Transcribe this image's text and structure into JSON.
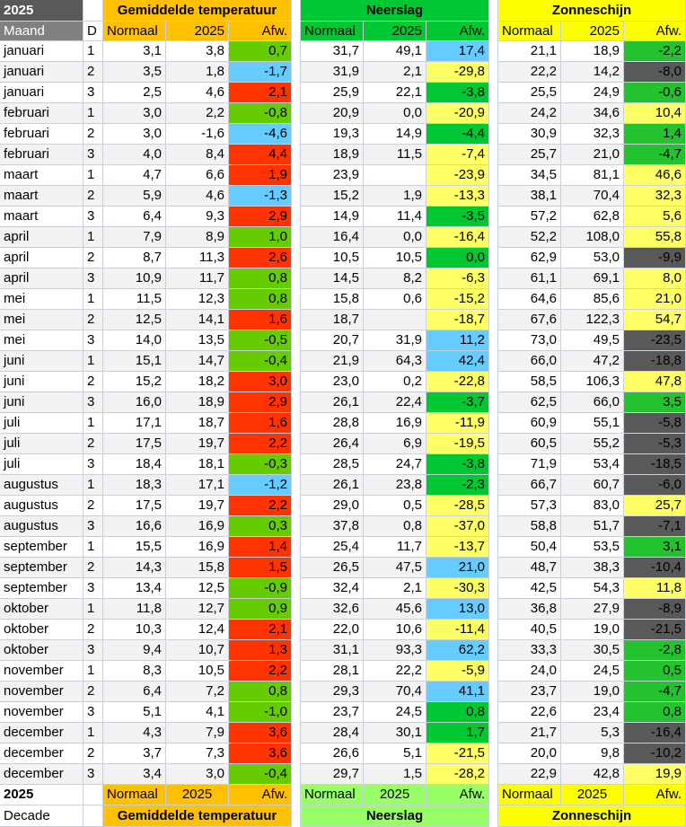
{
  "header": {
    "year": "2025",
    "col_month": "Maand",
    "col_d": "D",
    "groups": [
      "Gemiddelde temperatuur",
      "Neerslag",
      "Zonneschijn"
    ],
    "subheaders": [
      [
        "Normaal",
        "2025",
        "Afw."
      ],
      [
        "Normaal",
        "2025",
        "Afw."
      ],
      [
        "Normaal",
        "2025",
        "Afw."
      ]
    ]
  },
  "rows": [
    [
      "januari",
      1,
      "3,1",
      "3,8",
      "0,7",
      "31,7",
      "49,1",
      "17,4",
      "21,1",
      "18,9",
      "-2,2"
    ],
    [
      "januari",
      2,
      "3,5",
      "1,8",
      "-1,7",
      "31,9",
      "2,1",
      "-29,8",
      "22,2",
      "14,2",
      "-8,0"
    ],
    [
      "januari",
      3,
      "2,5",
      "4,6",
      "2,1",
      "25,9",
      "22,1",
      "-3,8",
      "25,5",
      "24,9",
      "-0,6"
    ],
    [
      "februari",
      1,
      "3,0",
      "2,2",
      "-0,8",
      "20,9",
      "0,0",
      "-20,9",
      "24,2",
      "34,6",
      "10,4"
    ],
    [
      "februari",
      2,
      "3,0",
      "-1,6",
      "-4,6",
      "19,3",
      "14,9",
      "-4,4",
      "30,9",
      "32,3",
      "1,4"
    ],
    [
      "februari",
      3,
      "4,0",
      "8,4",
      "4,4",
      "18,9",
      "11,5",
      "-7,4",
      "25,7",
      "21,0",
      "-4,7"
    ],
    [
      "maart",
      1,
      "4,7",
      "6,6",
      "1,9",
      "23,9",
      null,
      "-23,9",
      "34,5",
      "81,1",
      "46,6"
    ],
    [
      "maart",
      2,
      "5,9",
      "4,6",
      "-1,3",
      "15,2",
      "1,9",
      "-13,3",
      "38,1",
      "70,4",
      "32,3"
    ],
    [
      "maart",
      3,
      "6,4",
      "9,3",
      "2,9",
      "14,9",
      "11,4",
      "-3,5",
      "57,2",
      "62,8",
      "5,6"
    ],
    [
      "april",
      1,
      "7,9",
      "8,9",
      "1,0",
      "16,4",
      "0,0",
      "-16,4",
      "52,2",
      "108,0",
      "55,8"
    ],
    [
      "april",
      2,
      "8,7",
      "11,3",
      "2,6",
      "10,5",
      "10,5",
      "0,0",
      "62,9",
      "53,0",
      "-9,9"
    ],
    [
      "april",
      3,
      "10,9",
      "11,7",
      "0,8",
      "14,5",
      "8,2",
      "-6,3",
      "61,1",
      "69,1",
      "8,0"
    ],
    [
      "mei",
      1,
      "11,5",
      "12,3",
      "0,8",
      "15,8",
      "0,6",
      "-15,2",
      "64,6",
      "85,6",
      "21,0"
    ],
    [
      "mei",
      2,
      "12,5",
      "14,1",
      "1,6",
      "18,7",
      null,
      "-18,7",
      "67,6",
      "122,3",
      "54,7"
    ],
    [
      "mei",
      3,
      "14,0",
      "13,5",
      "-0,5",
      "20,7",
      "31,9",
      "11,2",
      "73,0",
      "49,5",
      "-23,5"
    ],
    [
      "juni",
      1,
      "15,1",
      "14,7",
      "-0,4",
      "21,9",
      "64,3",
      "42,4",
      "66,0",
      "47,2",
      "-18,8"
    ],
    [
      "juni",
      2,
      "15,2",
      "18,2",
      "3,0",
      "23,0",
      "0,2",
      "-22,8",
      "58,5",
      "106,3",
      "47,8"
    ],
    [
      "juni",
      3,
      "16,0",
      "18,9",
      "2,9",
      "26,1",
      "22,4",
      "-3,7",
      "62,5",
      "66,0",
      "3,5"
    ],
    [
      "juli",
      1,
      "17,1",
      "18,7",
      "1,6",
      "28,8",
      "16,9",
      "-11,9",
      "60,9",
      "55,1",
      "-5,8"
    ],
    [
      "juli",
      2,
      "17,5",
      "19,7",
      "2,2",
      "26,4",
      "6,9",
      "-19,5",
      "60,5",
      "55,2",
      "-5,3"
    ],
    [
      "juli",
      3,
      "18,4",
      "18,1",
      "-0,3",
      "28,5",
      "24,7",
      "-3,8",
      "71,9",
      "53,4",
      "-18,5"
    ],
    [
      "augustus",
      1,
      "18,3",
      "17,1",
      "-1,2",
      "26,1",
      "23,8",
      "-2,3",
      "66,7",
      "60,7",
      "-6,0"
    ],
    [
      "augustus",
      2,
      "17,5",
      "19,7",
      "2,2",
      "29,0",
      "0,5",
      "-28,5",
      "57,3",
      "83,0",
      "25,7"
    ],
    [
      "augustus",
      3,
      "16,6",
      "16,9",
      "0,3",
      "37,8",
      "0,8",
      "-37,0",
      "58,8",
      "51,7",
      "-7,1"
    ],
    [
      "september",
      1,
      "15,5",
      "16,9",
      "1,4",
      "25,4",
      "11,7",
      "-13,7",
      "50,4",
      "53,5",
      "3,1"
    ],
    [
      "september",
      2,
      "14,3",
      "15,8",
      "1,5",
      "26,5",
      "47,5",
      "21,0",
      "48,7",
      "38,3",
      "-10,4"
    ],
    [
      "september",
      3,
      "13,4",
      "12,5",
      "-0,9",
      "32,4",
      "2,1",
      "-30,3",
      "42,5",
      "54,3",
      "11,8"
    ],
    [
      "oktober",
      1,
      "11,8",
      "12,7",
      "0,9",
      "32,6",
      "45,6",
      "13,0",
      "36,8",
      "27,9",
      "-8,9"
    ],
    [
      "oktober",
      2,
      "10,3",
      "12,4",
      "2,1",
      "22,0",
      "10,6",
      "-11,4",
      "40,5",
      "19,0",
      "-21,5"
    ],
    [
      "oktober",
      3,
      "9,4",
      "10,7",
      "1,3",
      "31,1",
      "93,3",
      "62,2",
      "33,3",
      "30,5",
      "-2,8"
    ],
    [
      "november",
      1,
      "8,3",
      "10,5",
      "2,2",
      "28,1",
      "22,2",
      "-5,9",
      "24,0",
      "24,5",
      "0,5"
    ],
    [
      "november",
      2,
      "6,4",
      "7,2",
      "0,8",
      "29,3",
      "70,4",
      "41,1",
      "23,7",
      "19,0",
      "-4,7"
    ],
    [
      "november",
      3,
      "5,1",
      "4,1",
      "-1,0",
      "23,7",
      "24,5",
      "0,8",
      "22,6",
      "23,4",
      "0,8"
    ],
    [
      "december",
      1,
      "4,3",
      "7,9",
      "3,6",
      "28,4",
      "30,1",
      "1,7",
      "21,7",
      "5,3",
      "-16,4"
    ],
    [
      "december",
      2,
      "3,7",
      "7,3",
      "3,6",
      "26,6",
      "5,1",
      "-21,5",
      "20,0",
      "9,8",
      "-10,2"
    ],
    [
      "december",
      3,
      "3,4",
      "3,0",
      "-0,4",
      "29,7",
      "1,5",
      "-28,2",
      "22,9",
      "42,8",
      "19,9"
    ]
  ],
  "footer": {
    "year": "2025",
    "decade": "Decade",
    "subheaders": [
      [
        "Normaal",
        "2025",
        "Afw."
      ],
      [
        "Normaal",
        "2025",
        "Afw."
      ],
      [
        "Normaal",
        "2025",
        "Afw."
      ]
    ],
    "groups": [
      "Gemiddelde temperatuur",
      "Neerslag",
      "Zonneschijn"
    ]
  }
}
